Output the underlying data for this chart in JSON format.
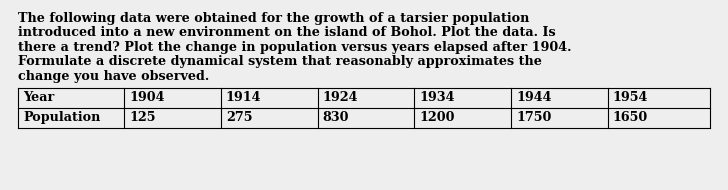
{
  "paragraph_lines": [
    "The following data were obtained for the growth of a tarsier population",
    "introduced into a new environment on the island of Bohol. Plot the data. Is",
    "there a trend? Plot the change in population versus years elapsed after 1904.",
    "Formulate a discrete dynamical system that reasonably approximates the",
    "change you have observed."
  ],
  "table_headers": [
    "Year",
    "1904",
    "1914",
    "1924",
    "1934",
    "1944",
    "1954"
  ],
  "table_row": [
    "Population",
    "125",
    "275",
    "830",
    "1200",
    "1750",
    "1650"
  ],
  "bg_color": "#eeeeee",
  "text_color": "#000000",
  "font_size": 9.2,
  "table_font_size": 9.2,
  "fig_width": 7.28,
  "fig_height": 1.9
}
